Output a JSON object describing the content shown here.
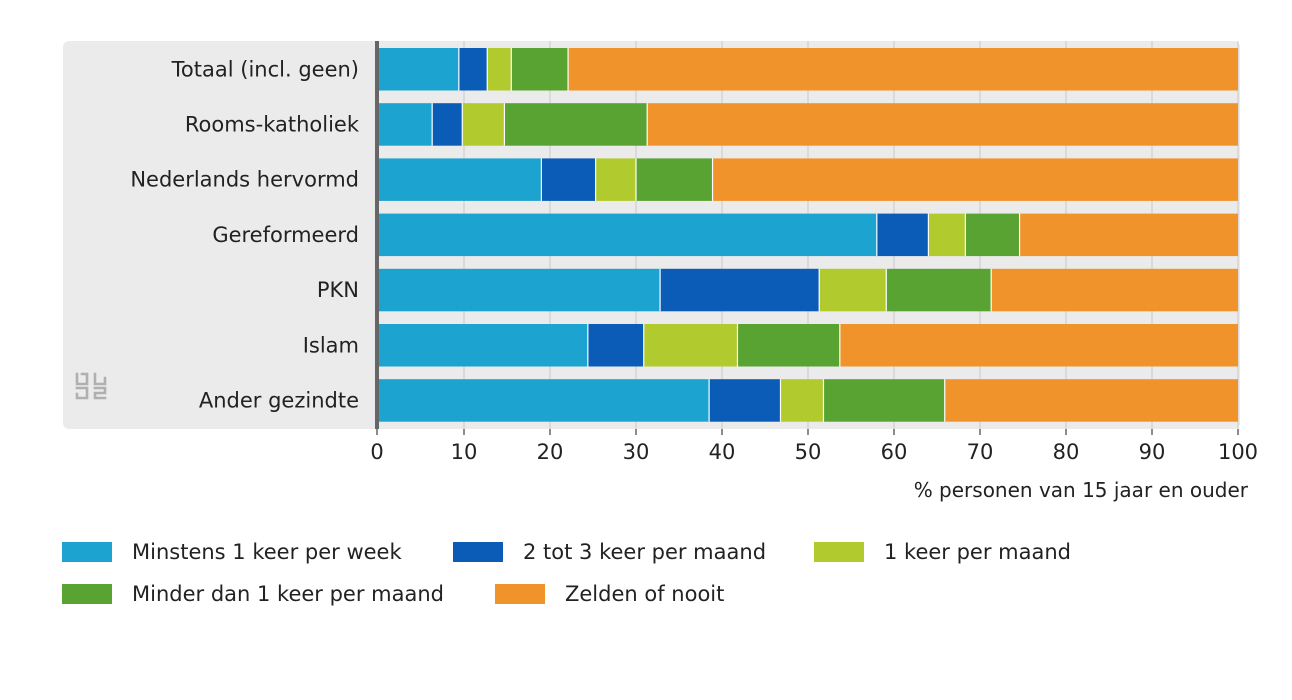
{
  "chart_data": {
    "type": "bar",
    "orientation": "horizontal",
    "stacked": true,
    "title": "",
    "xlabel": "% personen van 15 jaar en ouder",
    "ylabel": "",
    "xlim": [
      0,
      100
    ],
    "xticks": [
      0,
      10,
      20,
      30,
      40,
      50,
      60,
      70,
      80,
      90,
      100
    ],
    "grid": true,
    "legend_position": "bottom",
    "categories": [
      "Totaal (incl. geen)",
      "Rooms-katholiek",
      "Nederlands hervormd",
      "Gereformeerd",
      "PKN",
      "Islam",
      "Ander gezindte"
    ],
    "series": [
      {
        "name": "Minstens 1 keer per week",
        "color": "#1da3cf",
        "values": [
          9.4,
          6.3,
          19.0,
          58.0,
          32.8,
          24.4,
          38.5
        ]
      },
      {
        "name": "2 tot 3 keer per maand",
        "color": "#0b5cb6",
        "values": [
          3.3,
          3.5,
          6.3,
          6.0,
          18.5,
          6.5,
          8.3
        ]
      },
      {
        "name": "1 keer per maand",
        "color": "#b1ca2d",
        "values": [
          2.8,
          4.9,
          4.7,
          4.3,
          7.8,
          10.9,
          5.0
        ]
      },
      {
        "name": "Minder dan 1 keer per maand",
        "color": "#58a332",
        "values": [
          6.6,
          16.6,
          8.9,
          6.3,
          12.2,
          11.9,
          14.1
        ]
      },
      {
        "name": "Zelden of nooit",
        "color": "#f0932a",
        "values": [
          77.9,
          68.7,
          61.1,
          25.4,
          28.7,
          46.3,
          34.1
        ]
      }
    ]
  },
  "colors": {
    "panel_background": "#ebebeb",
    "axis_line": "#666666",
    "grid": "#c8c8c8",
    "logo": "#b0b0b0"
  },
  "logo": {
    "icon": "cbs-logo-icon",
    "text": "cbs"
  }
}
